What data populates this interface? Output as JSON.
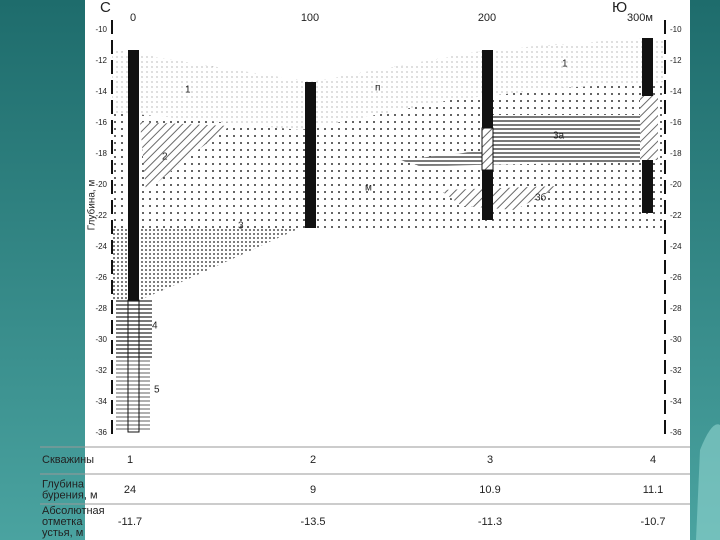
{
  "header": {
    "north": "С",
    "south": "Ю"
  },
  "distances": [
    "0",
    "100",
    "200",
    "300м"
  ],
  "depth_axis": {
    "label": "Глубина, м",
    "ticks": [
      -10,
      -12,
      -14,
      -16,
      -18,
      -20,
      -22,
      -24,
      -26,
      -28,
      -30,
      -32,
      -34,
      -36
    ]
  },
  "layer_labels": [
    "1",
    "1",
    "2",
    "п",
    "м",
    "3",
    "3а",
    "3б",
    "4",
    "5"
  ],
  "table": {
    "rows": [
      {
        "label": [
          "Скважины"
        ],
        "cells": [
          1,
          2,
          3,
          4
        ]
      },
      {
        "label": [
          "Глубина",
          "бурения, м"
        ],
        "cells": [
          24,
          9,
          10.9,
          11.1
        ]
      },
      {
        "label": [
          "Абсолютная",
          "отметка",
          "устья, м"
        ],
        "cells": [
          -11.7,
          -13.5,
          -11.3,
          -10.7
        ]
      }
    ]
  }
}
